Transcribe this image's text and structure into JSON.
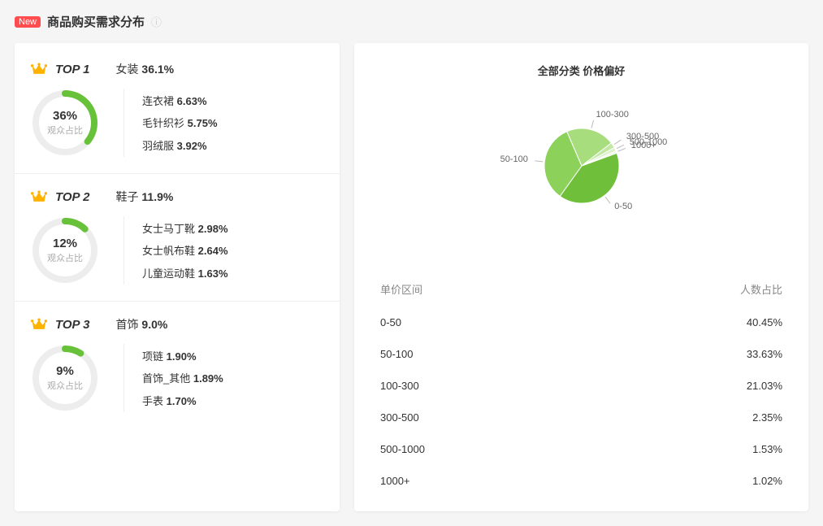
{
  "header": {
    "new_badge": "New",
    "title": "商品购买需求分布"
  },
  "colors": {
    "accent": "#67c23a",
    "donut_track": "#ededed",
    "badge_bg": "#ff4d4f",
    "crown_fill": "#ffb300",
    "text_muted": "#aaaaaa",
    "pie_slices": {
      "0-50": "#6fbf3a",
      "50-100": "#8cd15a",
      "100-300": "#a8dd7e",
      "300-500": "#c3e8a4",
      "500-1000": "#dbf1c7",
      "1000+": "#eef8e2"
    }
  },
  "donut": {
    "caption": "观众占比",
    "stroke_width": 8
  },
  "ranks": [
    {
      "rank_label": "TOP 1",
      "category": "女装",
      "category_pct_text": "36.1%",
      "pct_value": 36,
      "pct_text": "36%",
      "subs": [
        {
          "name": "连衣裙",
          "pct": "6.63%"
        },
        {
          "name": "毛针织衫",
          "pct": "5.75%"
        },
        {
          "name": "羽绒服",
          "pct": "3.92%"
        }
      ]
    },
    {
      "rank_label": "TOP 2",
      "category": "鞋子",
      "category_pct_text": "11.9%",
      "pct_value": 12,
      "pct_text": "12%",
      "subs": [
        {
          "name": "女士马丁靴",
          "pct": "2.98%"
        },
        {
          "name": "女士帆布鞋",
          "pct": "2.64%"
        },
        {
          "name": "儿童运动鞋",
          "pct": "1.63%"
        }
      ]
    },
    {
      "rank_label": "TOP 3",
      "category": "首饰",
      "category_pct_text": "9.0%",
      "pct_value": 9,
      "pct_text": "9%",
      "subs": [
        {
          "name": "项链",
          "pct": "1.90%"
        },
        {
          "name": "首饰_其他",
          "pct": "1.89%"
        },
        {
          "name": "手表",
          "pct": "1.70%"
        }
      ]
    }
  ],
  "pie_chart": {
    "title": "全部分类 价格偏好",
    "type": "pie",
    "radius": 46,
    "slices": [
      {
        "label": "0-50",
        "value": 40.45
      },
      {
        "label": "50-100",
        "value": 33.63
      },
      {
        "label": "100-300",
        "value": 21.03
      },
      {
        "label": "300-500",
        "value": 2.35
      },
      {
        "label": "500-1000",
        "value": 1.53
      },
      {
        "label": "1000+",
        "value": 1.02
      }
    ],
    "start_angle_deg": -20
  },
  "price_table": {
    "col_range": "单价区间",
    "col_ratio": "人数占比",
    "rows": [
      {
        "range": "0-50",
        "ratio": "40.45%"
      },
      {
        "range": "50-100",
        "ratio": "33.63%"
      },
      {
        "range": "100-300",
        "ratio": "21.03%"
      },
      {
        "range": "300-500",
        "ratio": "2.35%"
      },
      {
        "range": "500-1000",
        "ratio": "1.53%"
      },
      {
        "range": "1000+",
        "ratio": "1.02%"
      }
    ]
  }
}
